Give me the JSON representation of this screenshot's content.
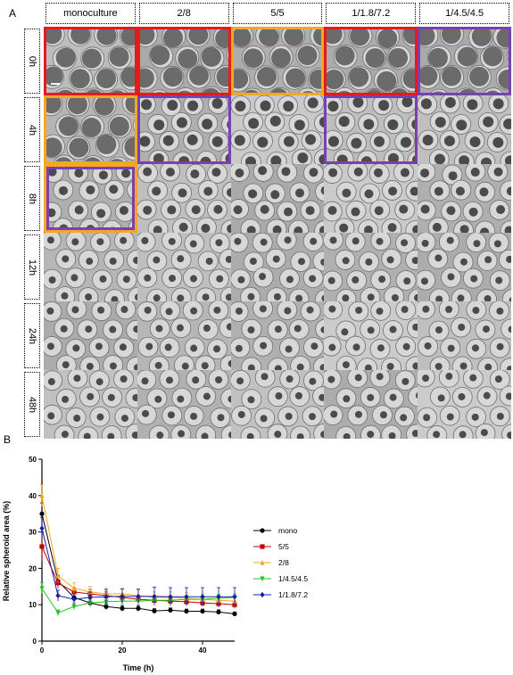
{
  "panel_a": {
    "letter": "A",
    "columns": [
      "monoculture",
      "2/8",
      "5/5",
      "1/1.8/7.2",
      "1/4.5/4.5"
    ],
    "rows": [
      "0h",
      "4h",
      "8h",
      "12h",
      "24h",
      "48h"
    ],
    "highlight_colors": {
      "red": "#e41a1c",
      "orange": "#f5a623",
      "purple": "#7b3fb5"
    },
    "highlights": [
      {
        "row": 0,
        "col": 0,
        "color": "red"
      },
      {
        "row": 0,
        "col": 1,
        "color": "red"
      },
      {
        "row": 0,
        "col": 2,
        "color": "orange"
      },
      {
        "row": 0,
        "col": 3,
        "color": "red"
      },
      {
        "row": 0,
        "col": 4,
        "color": "purple"
      },
      {
        "row": 1,
        "col": 0,
        "color": "orange"
      },
      {
        "row": 1,
        "col": 1,
        "color": "purple"
      },
      {
        "row": 1,
        "col": 3,
        "color": "purple"
      },
      {
        "row": 2,
        "col": 0,
        "color": "orange"
      },
      {
        "row": 2,
        "col": 0,
        "color": "purple"
      }
    ]
  },
  "panel_b": {
    "letter": "B"
  },
  "chart_data": {
    "type": "line",
    "xlabel": "Time (h)",
    "ylabel": "Relative spheroid area (%)",
    "xlim": [
      0,
      48
    ],
    "ylim": [
      0,
      50
    ],
    "xticks": [
      0,
      20,
      40
    ],
    "yticks": [
      0,
      10,
      20,
      30,
      40,
      50
    ],
    "legend_position": "right",
    "series": [
      {
        "name": "mono",
        "color": "#000000",
        "marker": "circle",
        "x": [
          0,
          4,
          8,
          12,
          16,
          20,
          24,
          28,
          32,
          36,
          40,
          44,
          48
        ],
        "y": [
          35,
          16.5,
          12,
          10.5,
          9.5,
          9,
          9,
          8.3,
          8.5,
          8.2,
          8.2,
          8,
          7.5
        ],
        "err": [
          3,
          1.5,
          1,
          1,
          0.8,
          0.8,
          0.8,
          0.6,
          0.6,
          0.6,
          0.6,
          0.6,
          0.5
        ]
      },
      {
        "name": "5/5",
        "color": "#c00000",
        "marker": "square",
        "x": [
          0,
          4,
          8,
          12,
          16,
          20,
          24,
          28,
          32,
          36,
          40,
          44,
          48
        ],
        "y": [
          26,
          16,
          13.5,
          13,
          12.5,
          12,
          11.5,
          11.2,
          11,
          10.8,
          10.5,
          10.3,
          10
        ],
        "err": [
          4,
          1.5,
          1.2,
          1.2,
          1,
          1,
          1,
          1,
          1,
          1,
          1,
          1,
          1
        ]
      },
      {
        "name": "2/8",
        "color": "#f5a623",
        "marker": "triangle",
        "x": [
          0,
          4,
          8,
          12,
          16,
          20,
          24,
          28,
          32,
          36,
          40,
          44,
          48
        ],
        "y": [
          40,
          18,
          14.5,
          13.5,
          13,
          13,
          12.5,
          12,
          12,
          11.8,
          11.5,
          11.2,
          11
        ],
        "err": [
          3,
          2,
          1.5,
          1.5,
          1.5,
          1.5,
          1.5,
          1.5,
          1.5,
          1.5,
          1.5,
          1.5,
          1.5
        ]
      },
      {
        "name": "1/4.5/4.5",
        "color": "#22c322",
        "marker": "triangle-down",
        "x": [
          0,
          4,
          8,
          12,
          16,
          20,
          24,
          28,
          32,
          36,
          40,
          44,
          48
        ],
        "y": [
          14.5,
          7.8,
          9.5,
          10.5,
          10.8,
          11,
          11,
          11.2,
          11.2,
          11.5,
          11.5,
          11.8,
          12
        ],
        "err": [
          1.5,
          0.8,
          1,
          1,
          1,
          1,
          1,
          1,
          1,
          1,
          1,
          1,
          1
        ]
      },
      {
        "name": "1/1.8/7.2",
        "color": "#1a1aa8",
        "marker": "diamond",
        "x": [
          0,
          4,
          8,
          12,
          16,
          20,
          24,
          28,
          32,
          36,
          40,
          44,
          48
        ],
        "y": [
          31,
          12.5,
          11.5,
          12,
          12.2,
          12.3,
          12.3,
          12.3,
          12.2,
          12.2,
          12.2,
          12.2,
          12.2
        ],
        "err": [
          3,
          1.5,
          1.5,
          1.5,
          2,
          2,
          2,
          2.5,
          2.5,
          2.5,
          2.5,
          2.5,
          2.5
        ]
      }
    ]
  }
}
